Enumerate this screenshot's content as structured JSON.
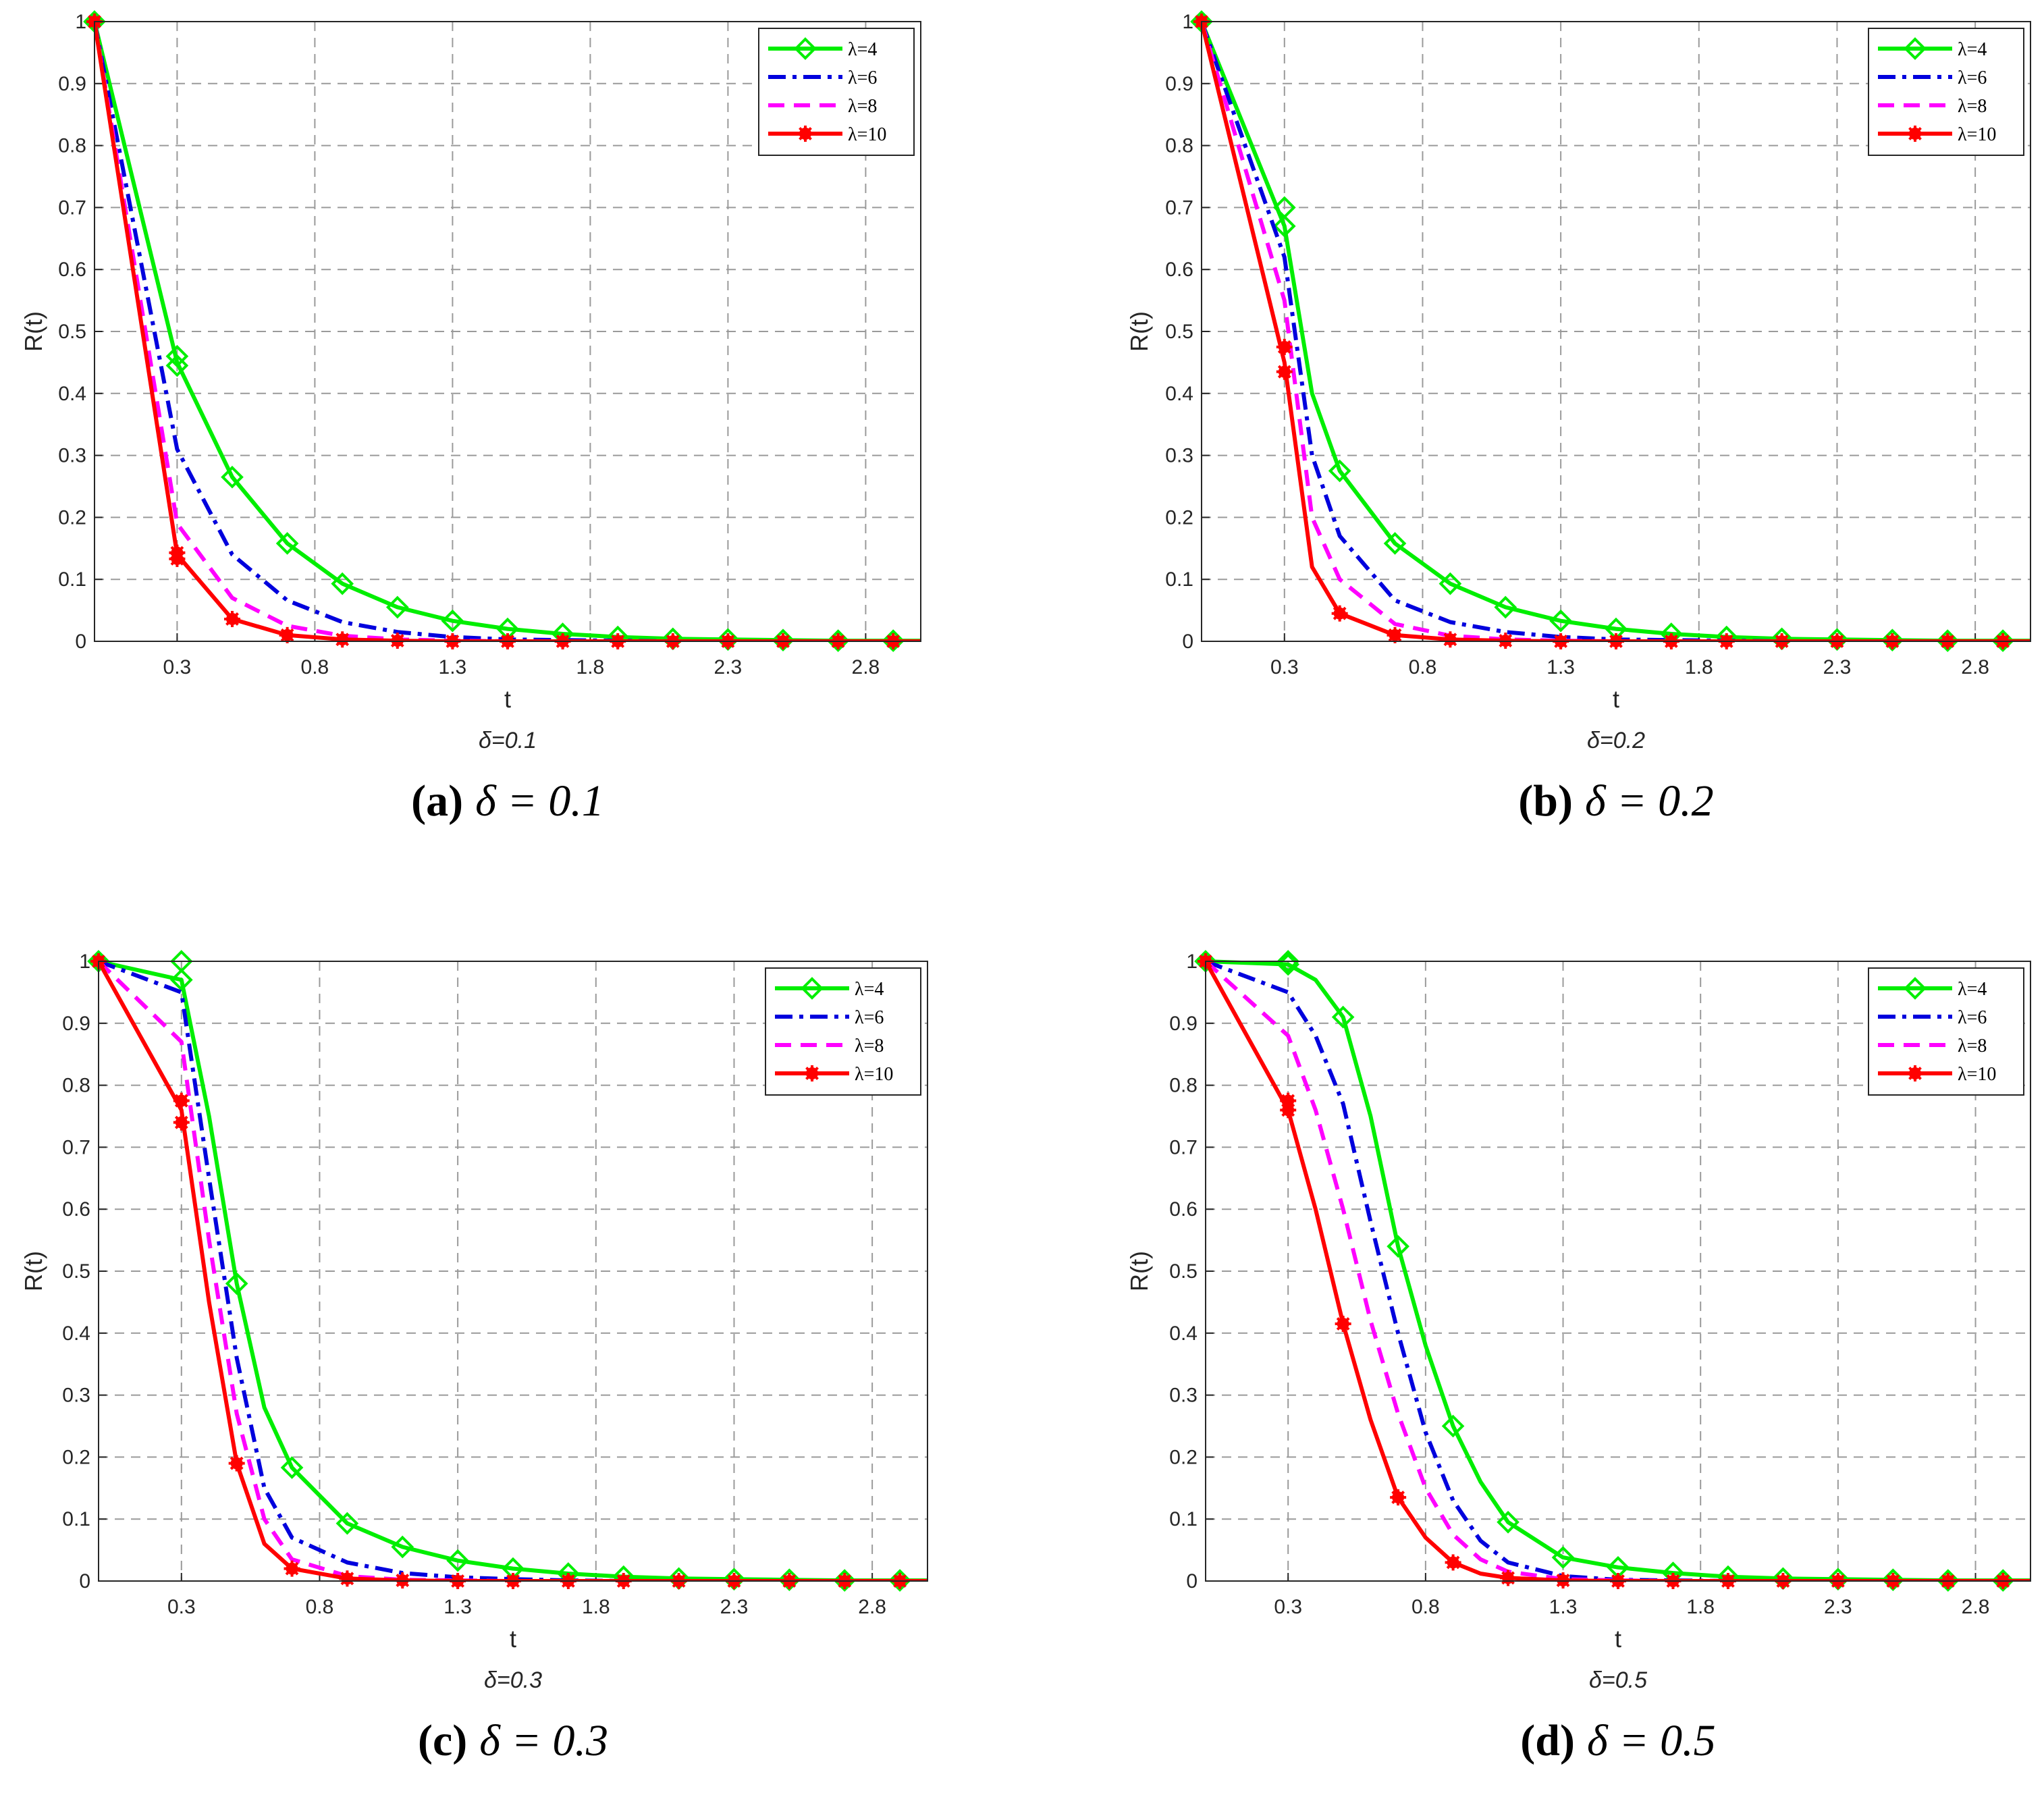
{
  "figure": {
    "legend_labels": [
      "λ=4",
      "λ=6",
      "λ=8",
      "λ=10"
    ],
    "x_label": "t",
    "y_label": "R(t)"
  },
  "series_styles": [
    {
      "name": "λ=4",
      "color": "#00ee00",
      "line": "solid",
      "marker": "diamond"
    },
    {
      "name": "λ=6",
      "color": "#0000dd",
      "line": "dashdot",
      "marker": "none"
    },
    {
      "name": "λ=8",
      "color": "#ff00ff",
      "line": "dashed",
      "marker": "none"
    },
    {
      "name": "λ=10",
      "color": "#ff0000",
      "line": "solid",
      "marker": "asterisk"
    }
  ],
  "chart_data": [
    {
      "id": "a",
      "type": "line",
      "subtitle": "δ=0.1",
      "caption_letter": "(a)",
      "caption_math": "δ = 0.1",
      "xlabel": "t",
      "ylabel": "R(t)",
      "xlim": [
        0,
        3.0
      ],
      "ylim": [
        0,
        1
      ],
      "xticks": [
        0.3,
        0.8,
        1.3,
        1.8,
        2.3,
        2.8
      ],
      "yticks": [
        0,
        0.1,
        0.2,
        0.3,
        0.4,
        0.5,
        0.6,
        0.7,
        0.8,
        0.9,
        1
      ],
      "grid": true,
      "legend_position": "top-right",
      "x": [
        0,
        0.3,
        0.5,
        0.7,
        0.9,
        1.1,
        1.3,
        1.5,
        1.7,
        1.9,
        2.1,
        2.3,
        2.5,
        2.7,
        2.9,
        3.0
      ],
      "series": [
        {
          "name": "λ=4",
          "values": [
            1,
            0.45,
            0.265,
            0.158,
            0.093,
            0.055,
            0.033,
            0.02,
            0.012,
            0.007,
            0.004,
            0.003,
            0.002,
            0.001,
            0.001,
            0.001
          ],
          "markers": [
            [
              0,
              1
            ],
            [
              0.3,
              0.46
            ],
            [
              0.3,
              0.445
            ],
            [
              0.5,
              0.265
            ],
            [
              0.7,
              0.158
            ],
            [
              0.9,
              0.093
            ],
            [
              1.1,
              0.055
            ],
            [
              1.3,
              0.033
            ],
            [
              1.5,
              0.02
            ],
            [
              1.7,
              0.012
            ],
            [
              1.9,
              0.007
            ],
            [
              2.1,
              0.004
            ],
            [
              2.3,
              0.003
            ],
            [
              2.5,
              0.002
            ],
            [
              2.7,
              0.001
            ],
            [
              2.9,
              0.001
            ]
          ]
        },
        {
          "name": "λ=6",
          "values": [
            1,
            0.31,
            0.14,
            0.066,
            0.031,
            0.015,
            0.007,
            0.003,
            0.002,
            0.001,
            0,
            0,
            0,
            0,
            0,
            0
          ],
          "markers": []
        },
        {
          "name": "λ=8",
          "values": [
            1,
            0.19,
            0.07,
            0.025,
            0.009,
            0.003,
            0.001,
            0,
            0,
            0,
            0,
            0,
            0,
            0,
            0,
            0
          ],
          "markers": []
        },
        {
          "name": "λ=10",
          "values": [
            1,
            0.14,
            0.036,
            0.01,
            0.003,
            0.001,
            0,
            0,
            0,
            0,
            0,
            0,
            0,
            0,
            0,
            0
          ],
          "markers": [
            [
              0,
              1
            ],
            [
              0.3,
              0.143
            ],
            [
              0.3,
              0.133
            ],
            [
              0.5,
              0.036
            ],
            [
              0.7,
              0.01
            ],
            [
              0.9,
              0.003
            ],
            [
              1.1,
              0.001
            ],
            [
              1.3,
              0
            ],
            [
              1.5,
              0
            ],
            [
              1.7,
              0
            ],
            [
              1.9,
              0
            ],
            [
              2.1,
              0
            ],
            [
              2.3,
              0
            ],
            [
              2.5,
              0
            ],
            [
              2.7,
              0
            ],
            [
              2.9,
              0
            ]
          ]
        }
      ]
    },
    {
      "id": "b",
      "type": "line",
      "subtitle": "δ=0.2",
      "caption_letter": "(b)",
      "caption_math": "δ = 0.2",
      "xlabel": "t",
      "ylabel": "R(t)",
      "xlim": [
        0,
        3.0
      ],
      "ylim": [
        0,
        1
      ],
      "xticks": [
        0.3,
        0.8,
        1.3,
        1.8,
        2.3,
        2.8
      ],
      "yticks": [
        0,
        0.1,
        0.2,
        0.3,
        0.4,
        0.5,
        0.6,
        0.7,
        0.8,
        0.9,
        1
      ],
      "grid": true,
      "legend_position": "top-right",
      "x": [
        0,
        0.3,
        0.4,
        0.5,
        0.7,
        0.9,
        1.1,
        1.3,
        1.5,
        1.7,
        1.9,
        2.1,
        2.3,
        2.5,
        2.7,
        2.9,
        3.0
      ],
      "series": [
        {
          "name": "λ=4",
          "values": [
            1,
            0.67,
            0.4,
            0.275,
            0.158,
            0.093,
            0.055,
            0.033,
            0.02,
            0.012,
            0.007,
            0.004,
            0.003,
            0.002,
            0.001,
            0.001,
            0.001
          ],
          "markers": [
            [
              0,
              1
            ],
            [
              0.3,
              0.7
            ],
            [
              0.3,
              0.67
            ],
            [
              0.5,
              0.275
            ],
            [
              0.7,
              0.158
            ],
            [
              0.9,
              0.093
            ],
            [
              1.1,
              0.055
            ],
            [
              1.3,
              0.033
            ],
            [
              1.5,
              0.02
            ],
            [
              1.7,
              0.012
            ],
            [
              1.9,
              0.007
            ],
            [
              2.1,
              0.004
            ],
            [
              2.3,
              0.003
            ],
            [
              2.5,
              0.002
            ],
            [
              2.7,
              0.001
            ],
            [
              2.9,
              0.001
            ]
          ]
        },
        {
          "name": "λ=6",
          "values": [
            1,
            0.62,
            0.3,
            0.17,
            0.066,
            0.031,
            0.015,
            0.007,
            0.003,
            0.002,
            0.001,
            0,
            0,
            0,
            0,
            0,
            0
          ],
          "markers": []
        },
        {
          "name": "λ=8",
          "values": [
            1,
            0.55,
            0.2,
            0.1,
            0.028,
            0.009,
            0.003,
            0.001,
            0,
            0,
            0,
            0,
            0,
            0,
            0,
            0,
            0
          ],
          "markers": []
        },
        {
          "name": "λ=10",
          "values": [
            1,
            0.45,
            0.12,
            0.045,
            0.01,
            0.003,
            0.001,
            0,
            0,
            0,
            0,
            0,
            0,
            0,
            0,
            0,
            0
          ],
          "markers": [
            [
              0,
              1
            ],
            [
              0.3,
              0.475
            ],
            [
              0.3,
              0.435
            ],
            [
              0.5,
              0.045
            ],
            [
              0.7,
              0.01
            ],
            [
              0.9,
              0.003
            ],
            [
              1.1,
              0.001
            ],
            [
              1.3,
              0
            ],
            [
              1.5,
              0
            ],
            [
              1.7,
              0
            ],
            [
              1.9,
              0
            ],
            [
              2.1,
              0
            ],
            [
              2.3,
              0
            ],
            [
              2.5,
              0
            ],
            [
              2.7,
              0
            ],
            [
              2.9,
              0
            ]
          ]
        }
      ]
    },
    {
      "id": "c",
      "type": "line",
      "subtitle": "δ=0.3",
      "caption_letter": "(c)",
      "caption_math": "δ = 0.3",
      "xlabel": "t",
      "ylabel": "R(t)",
      "xlim": [
        0,
        3.0
      ],
      "ylim": [
        0,
        1
      ],
      "xticks": [
        0.3,
        0.8,
        1.3,
        1.8,
        2.3,
        2.8
      ],
      "yticks": [
        0,
        0.1,
        0.2,
        0.3,
        0.4,
        0.5,
        0.6,
        0.7,
        0.8,
        0.9,
        1
      ],
      "grid": true,
      "legend_position": "top-right",
      "x": [
        0,
        0.3,
        0.4,
        0.5,
        0.6,
        0.7,
        0.9,
        1.1,
        1.3,
        1.5,
        1.7,
        1.9,
        2.1,
        2.3,
        2.5,
        2.7,
        2.9,
        3.0
      ],
      "series": [
        {
          "name": "λ=4",
          "values": [
            1,
            0.97,
            0.75,
            0.48,
            0.28,
            0.183,
            0.093,
            0.055,
            0.033,
            0.02,
            0.012,
            0.007,
            0.004,
            0.003,
            0.002,
            0.001,
            0.001,
            0.001
          ],
          "markers": [
            [
              0,
              1
            ],
            [
              0.3,
              1
            ],
            [
              0.3,
              0.97
            ],
            [
              0.5,
              0.48
            ],
            [
              0.7,
              0.183
            ],
            [
              0.9,
              0.093
            ],
            [
              1.1,
              0.055
            ],
            [
              1.3,
              0.033
            ],
            [
              1.5,
              0.02
            ],
            [
              1.7,
              0.012
            ],
            [
              1.9,
              0.007
            ],
            [
              2.1,
              0.004
            ],
            [
              2.3,
              0.003
            ],
            [
              2.5,
              0.002
            ],
            [
              2.7,
              0.001
            ],
            [
              2.9,
              0.001
            ]
          ]
        },
        {
          "name": "λ=6",
          "values": [
            1,
            0.95,
            0.65,
            0.36,
            0.15,
            0.07,
            0.03,
            0.013,
            0.006,
            0.003,
            0.001,
            0,
            0,
            0,
            0,
            0,
            0,
            0
          ],
          "markers": []
        },
        {
          "name": "λ=8",
          "values": [
            1,
            0.87,
            0.55,
            0.27,
            0.1,
            0.035,
            0.008,
            0.002,
            0.001,
            0,
            0,
            0,
            0,
            0,
            0,
            0,
            0,
            0
          ],
          "markers": []
        },
        {
          "name": "λ=10",
          "values": [
            1,
            0.76,
            0.45,
            0.19,
            0.06,
            0.02,
            0.004,
            0.001,
            0,
            0,
            0,
            0,
            0,
            0,
            0,
            0,
            0,
            0
          ],
          "markers": [
            [
              0,
              1
            ],
            [
              0.3,
              0.775
            ],
            [
              0.3,
              0.74
            ],
            [
              0.5,
              0.19
            ],
            [
              0.7,
              0.02
            ],
            [
              0.9,
              0.004
            ],
            [
              1.1,
              0.001
            ],
            [
              1.3,
              0
            ],
            [
              1.5,
              0
            ],
            [
              1.7,
              0
            ],
            [
              1.9,
              0
            ],
            [
              2.1,
              0
            ],
            [
              2.3,
              0
            ],
            [
              2.5,
              0
            ],
            [
              2.7,
              0
            ],
            [
              2.9,
              0
            ]
          ]
        }
      ]
    },
    {
      "id": "d",
      "type": "line",
      "subtitle": "δ=0.5",
      "caption_letter": "(d)",
      "caption_math": "δ = 0.5",
      "xlabel": "t",
      "ylabel": "R(t)",
      "xlim": [
        0,
        3.0
      ],
      "ylim": [
        0,
        1
      ],
      "xticks": [
        0.3,
        0.8,
        1.3,
        1.8,
        2.3,
        2.8
      ],
      "yticks": [
        0,
        0.1,
        0.2,
        0.3,
        0.4,
        0.5,
        0.6,
        0.7,
        0.8,
        0.9,
        1
      ],
      "grid": true,
      "legend_position": "top-right",
      "x": [
        0,
        0.3,
        0.4,
        0.5,
        0.6,
        0.7,
        0.8,
        0.9,
        1.0,
        1.1,
        1.3,
        1.5,
        1.7,
        1.9,
        2.1,
        2.3,
        2.5,
        2.7,
        2.9,
        3.0
      ],
      "series": [
        {
          "name": "λ=4",
          "values": [
            1,
            0.995,
            0.97,
            0.91,
            0.75,
            0.54,
            0.38,
            0.25,
            0.16,
            0.095,
            0.038,
            0.022,
            0.013,
            0.007,
            0.004,
            0.003,
            0.002,
            0.001,
            0.001,
            0.001
          ],
          "markers": [
            [
              0,
              1
            ],
            [
              0.3,
              1
            ],
            [
              0.3,
              0.995
            ],
            [
              0.5,
              0.91
            ],
            [
              0.7,
              0.54
            ],
            [
              0.9,
              0.25
            ],
            [
              1.1,
              0.095
            ],
            [
              1.3,
              0.038
            ],
            [
              1.5,
              0.022
            ],
            [
              1.7,
              0.013
            ],
            [
              1.9,
              0.007
            ],
            [
              2.1,
              0.004
            ],
            [
              2.3,
              0.003
            ],
            [
              2.5,
              0.002
            ],
            [
              2.7,
              0.001
            ],
            [
              2.9,
              0.001
            ]
          ]
        },
        {
          "name": "λ=6",
          "values": [
            1,
            0.95,
            0.88,
            0.77,
            0.58,
            0.4,
            0.24,
            0.13,
            0.065,
            0.03,
            0.008,
            0.002,
            0.001,
            0,
            0,
            0,
            0,
            0,
            0,
            0
          ],
          "markers": []
        },
        {
          "name": "λ=8",
          "values": [
            1,
            0.88,
            0.76,
            0.6,
            0.42,
            0.27,
            0.15,
            0.075,
            0.035,
            0.015,
            0.003,
            0.001,
            0,
            0,
            0,
            0,
            0,
            0,
            0,
            0
          ],
          "markers": []
        },
        {
          "name": "λ=10",
          "values": [
            1,
            0.76,
            0.6,
            0.415,
            0.26,
            0.135,
            0.07,
            0.03,
            0.012,
            0.005,
            0.001,
            0,
            0,
            0,
            0,
            0,
            0,
            0,
            0,
            0
          ],
          "markers": [
            [
              0,
              1
            ],
            [
              0.3,
              0.775
            ],
            [
              0.3,
              0.76
            ],
            [
              0.5,
              0.415
            ],
            [
              0.7,
              0.135
            ],
            [
              0.9,
              0.03
            ],
            [
              1.1,
              0.005
            ],
            [
              1.3,
              0.001
            ],
            [
              1.5,
              0
            ],
            [
              1.7,
              0
            ],
            [
              1.9,
              0
            ],
            [
              2.1,
              0
            ],
            [
              2.3,
              0
            ],
            [
              2.5,
              0
            ],
            [
              2.7,
              0
            ],
            [
              2.9,
              0
            ]
          ]
        }
      ]
    }
  ]
}
